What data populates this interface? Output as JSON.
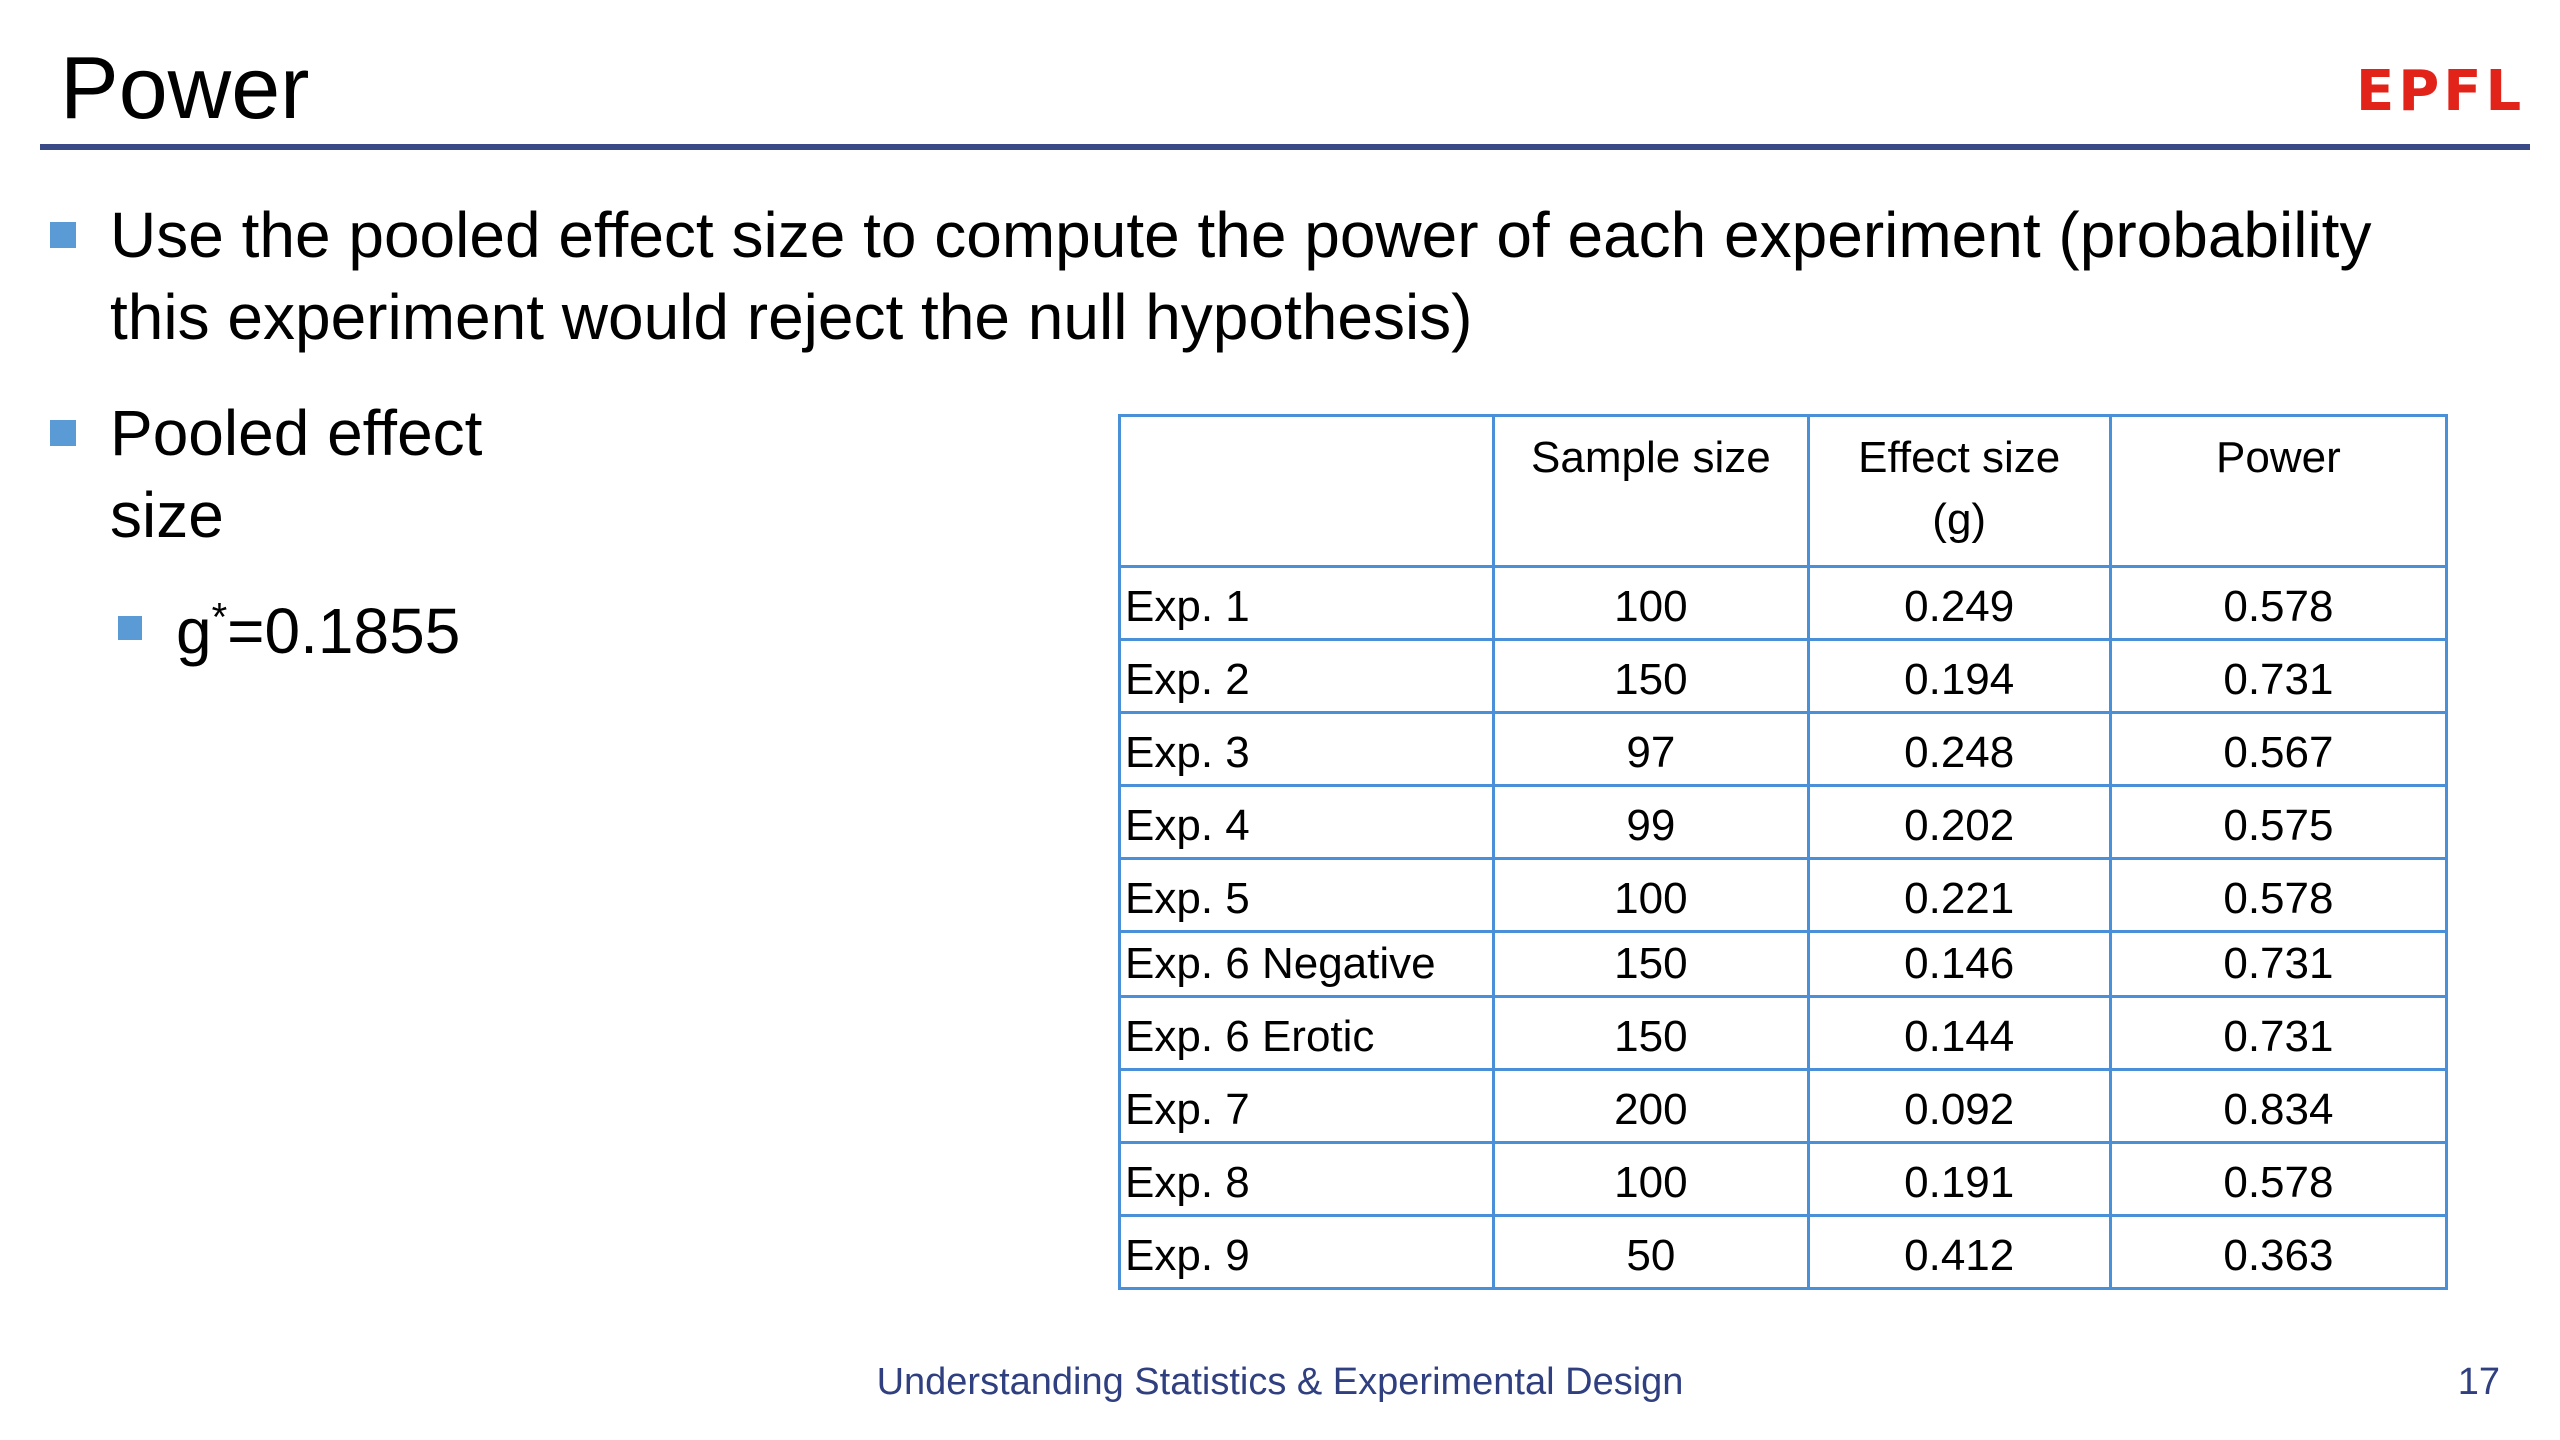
{
  "slide": {
    "title": "Power",
    "logo_text": "EPFL",
    "brand_color": "#e2231a",
    "accent_color": "#5b9bd5",
    "rule_color": "#3a4a86",
    "text_color": "#000000"
  },
  "bullets": {
    "first_line1": "Use the pooled effect size to compute the power of each experiment (probability",
    "first_line2": "this experiment would reject the null hypothesis)",
    "second_line1": "Pooled effect",
    "second_line2": "size",
    "sub_base": "g",
    "sub_superscript": "*",
    "sub_value": "=0.1855"
  },
  "table": {
    "headers": [
      "",
      "Sample size",
      "Effect size\n(g)",
      "Power"
    ],
    "rows": [
      [
        "Exp. 1",
        "100",
        "0.249",
        "0.578"
      ],
      [
        "Exp. 2",
        "150",
        "0.194",
        "0.731"
      ],
      [
        "Exp. 3",
        "97",
        "0.248",
        "0.567"
      ],
      [
        "Exp. 4",
        "99",
        "0.202",
        "0.575"
      ],
      [
        "Exp. 5",
        "100",
        "0.221",
        "0.578"
      ],
      [
        "Exp. 6 Negative",
        "150",
        "0.146",
        "0.731"
      ],
      [
        "Exp. 6 Erotic",
        "150",
        "0.144",
        "0.731"
      ],
      [
        "Exp. 7",
        "200",
        "0.092",
        "0.834"
      ],
      [
        "Exp. 8",
        "100",
        "0.191",
        "0.578"
      ],
      [
        "Exp. 9",
        "50",
        "0.412",
        "0.363"
      ]
    ]
  },
  "footer": {
    "course": "Understanding Statistics & Experimental Design",
    "page_number": "17",
    "color": "#2f3f7f"
  }
}
